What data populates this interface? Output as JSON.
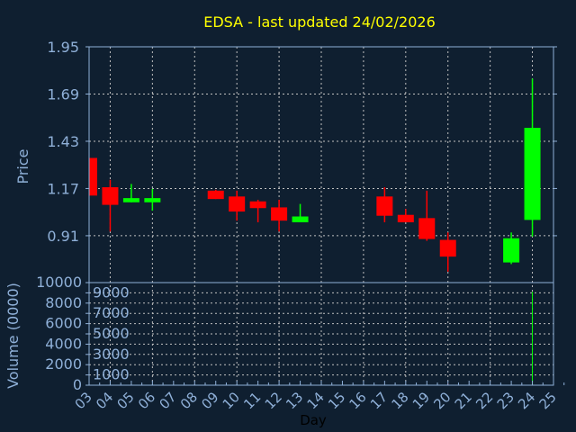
{
  "chart_data": {
    "type": "candlestick",
    "title": "EDSA - last updated 24/02/2026",
    "xlabel": "Day",
    "ylabel": "Price",
    "volume_label": "Volume (0000)",
    "x_ticks": [
      "03",
      "04",
      "05",
      "06",
      "07",
      "08",
      "09",
      "10",
      "11",
      "12",
      "13",
      "14",
      "15",
      "16",
      "17",
      "18",
      "19",
      "20",
      "21",
      "22",
      "23",
      "24",
      "25"
    ],
    "y_ticks": [
      "1.95",
      "1.69",
      "1.43",
      "1.17",
      "0.91"
    ],
    "y_tick_values": [
      1.95,
      1.69,
      1.43,
      1.17,
      0.91
    ],
    "ylim": [
      0.652,
      1.95
    ],
    "volume_ticks": [
      "0",
      "1000",
      "2000",
      "3000",
      "4000",
      "5000",
      "6000",
      "7000",
      "8000",
      "9000",
      "10000"
    ],
    "volume_lim": [
      0,
      10000
    ],
    "grid": true,
    "colors": {
      "up": "#00ff00",
      "down": "#ff0000",
      "title": "#ffff00",
      "axis": "#8fb0d8",
      "background": "#0f1f30",
      "grid": "#c0c0c0"
    },
    "candles": [
      {
        "day": "03",
        "open": 1.338,
        "high": 1.338,
        "low": 1.131,
        "close": 1.131,
        "volume": 0
      },
      {
        "day": "04",
        "open": 1.177,
        "high": 1.218,
        "low": 0.933,
        "close": 1.08,
        "volume": 0
      },
      {
        "day": "05",
        "open": 1.094,
        "high": 1.195,
        "low": 1.094,
        "close": 1.117,
        "volume": 0
      },
      {
        "day": "06",
        "open": 1.094,
        "high": 1.168,
        "low": 1.048,
        "close": 1.117,
        "volume": 0
      },
      {
        "day": "09",
        "open": 1.158,
        "high": 1.163,
        "low": 1.112,
        "close": 1.112,
        "volume": 0
      },
      {
        "day": "10",
        "open": 1.126,
        "high": 1.158,
        "low": 0.993,
        "close": 1.043,
        "volume": 0
      },
      {
        "day": "11",
        "open": 1.099,
        "high": 1.108,
        "low": 0.984,
        "close": 1.062,
        "volume": 0
      },
      {
        "day": "12",
        "open": 1.066,
        "high": 1.108,
        "low": 0.933,
        "close": 0.993,
        "volume": 0
      },
      {
        "day": "13",
        "open": 0.984,
        "high": 1.085,
        "low": 0.984,
        "close": 1.016,
        "volume": 0
      },
      {
        "day": "17",
        "open": 1.126,
        "high": 1.177,
        "low": 0.984,
        "close": 1.02,
        "volume": 50
      },
      {
        "day": "18",
        "open": 1.025,
        "high": 1.057,
        "low": 0.984,
        "close": 0.984,
        "volume": 0
      },
      {
        "day": "19",
        "open": 1.007,
        "high": 1.158,
        "low": 0.882,
        "close": 0.892,
        "volume": 0
      },
      {
        "day": "20",
        "open": 0.887,
        "high": 0.928,
        "low": 0.712,
        "close": 0.795,
        "volume": 150
      },
      {
        "day": "23",
        "open": 0.763,
        "high": 0.928,
        "low": 0.754,
        "close": 0.896,
        "volume": 0
      },
      {
        "day": "24",
        "open": 0.997,
        "high": 1.775,
        "low": 0.905,
        "close": 1.504,
        "volume": 9100
      }
    ]
  }
}
